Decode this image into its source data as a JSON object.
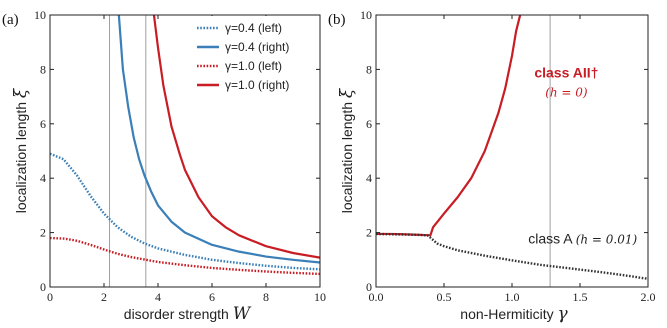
{
  "colors": {
    "blue": "#3a7fb8",
    "red": "#c81d25",
    "black": "#333333",
    "guide": "#888888"
  },
  "panels": [
    {
      "label": "(a)",
      "xlabel_text": "disorder strength",
      "xlabel_symbol": "W",
      "ylabel_text": "localization length",
      "ylabel_symbol": "ξ",
      "legend": [
        "γ=0.4 (left)",
        "γ=0.4 (right)",
        "γ=1.0 (left)",
        "γ=1.0 (right)"
      ]
    },
    {
      "label": "(b)",
      "xlabel_text": "non-Hermiticity",
      "xlabel_symbol": "γ",
      "ylabel_text": "localization length",
      "ylabel_symbol": "ξ",
      "annotation_red": "class AII†",
      "annotation_red_sub": "(h = 0)",
      "annotation_black": "class A",
      "annotation_black_sub": "(h = 0.01)"
    }
  ],
  "chart_data": [
    {
      "type": "line",
      "title": "",
      "xlabel": "disorder strength W",
      "ylabel": "localization length ξ",
      "xlim": [
        0,
        10
      ],
      "ylim": [
        0,
        10
      ],
      "xticks": [
        0,
        2,
        4,
        6,
        8,
        10
      ],
      "yticks": [
        0,
        2,
        4,
        6,
        8,
        10
      ],
      "grid": false,
      "legend_position": "top-right",
      "vertical_guides": [
        2.2,
        3.55
      ],
      "series": [
        {
          "name": "γ=0.4 (left)",
          "color": "#3a7fb8",
          "style": "dotted",
          "x": [
            0,
            0.5,
            1,
            1.5,
            2,
            2.5,
            3,
            3.5,
            4,
            5,
            6,
            7,
            8,
            9,
            10
          ],
          "y": [
            4.9,
            4.7,
            4.1,
            3.35,
            2.7,
            2.2,
            1.85,
            1.6,
            1.42,
            1.18,
            1.0,
            0.88,
            0.78,
            0.7,
            0.65
          ]
        },
        {
          "name": "γ=0.4 (right)",
          "color": "#3a7fb8",
          "style": "solid",
          "x": [
            2.55,
            2.7,
            2.9,
            3.1,
            3.3,
            3.5,
            3.75,
            4,
            4.5,
            5,
            6,
            7,
            8,
            9,
            10
          ],
          "y": [
            10,
            8.0,
            6.6,
            5.5,
            4.7,
            4.1,
            3.5,
            3.0,
            2.4,
            2.0,
            1.55,
            1.3,
            1.12,
            1.0,
            0.9
          ]
        },
        {
          "name": "γ=1.0 (left)",
          "color": "#c81d25",
          "style": "dotted",
          "x": [
            0,
            0.5,
            1,
            1.5,
            2,
            2.5,
            3,
            4,
            5,
            6,
            7,
            8,
            9,
            10
          ],
          "y": [
            1.8,
            1.78,
            1.7,
            1.55,
            1.38,
            1.22,
            1.1,
            0.92,
            0.8,
            0.7,
            0.63,
            0.57,
            0.52,
            0.48
          ]
        },
        {
          "name": "γ=1.0 (right)",
          "color": "#c81d25",
          "style": "solid",
          "x": [
            3.85,
            4,
            4.2,
            4.5,
            4.8,
            5,
            5.5,
            6,
            6.5,
            7,
            8,
            9,
            10
          ],
          "y": [
            10,
            8.8,
            7.4,
            5.9,
            4.9,
            4.3,
            3.3,
            2.6,
            2.2,
            1.9,
            1.5,
            1.25,
            1.08
          ]
        }
      ]
    },
    {
      "type": "line",
      "title": "",
      "xlabel": "non-Hermiticity γ",
      "ylabel": "localization length ξ",
      "xlim": [
        0,
        2
      ],
      "ylim": [
        0,
        10
      ],
      "xticks": [
        0.0,
        0.5,
        1.0,
        1.5,
        2.0
      ],
      "yticks": [
        0,
        2,
        4,
        6,
        8,
        10
      ],
      "grid": false,
      "vertical_guides": [
        1.28
      ],
      "series": [
        {
          "name": "class AII† (h = 0)",
          "color": "#c81d25",
          "style": "solid",
          "x": [
            0,
            0.1,
            0.2,
            0.3,
            0.4,
            0.42,
            0.5,
            0.6,
            0.7,
            0.8,
            0.9,
            0.95,
            1.0,
            1.03,
            1.06
          ],
          "y": [
            1.95,
            1.95,
            1.94,
            1.92,
            1.9,
            2.2,
            2.7,
            3.3,
            4.0,
            5.0,
            6.4,
            7.3,
            8.5,
            9.4,
            10
          ]
        },
        {
          "name": "class A (h = 0.01)",
          "color": "#333333",
          "style": "dotted",
          "x": [
            0,
            0.1,
            0.2,
            0.3,
            0.38,
            0.45,
            0.5,
            0.6,
            0.7,
            0.8,
            1.0,
            1.2,
            1.4,
            1.6,
            1.8,
            2.0
          ],
          "y": [
            1.95,
            1.94,
            1.93,
            1.92,
            1.9,
            1.6,
            1.5,
            1.35,
            1.25,
            1.15,
            0.98,
            0.82,
            0.7,
            0.58,
            0.45,
            0.3
          ]
        }
      ]
    }
  ]
}
